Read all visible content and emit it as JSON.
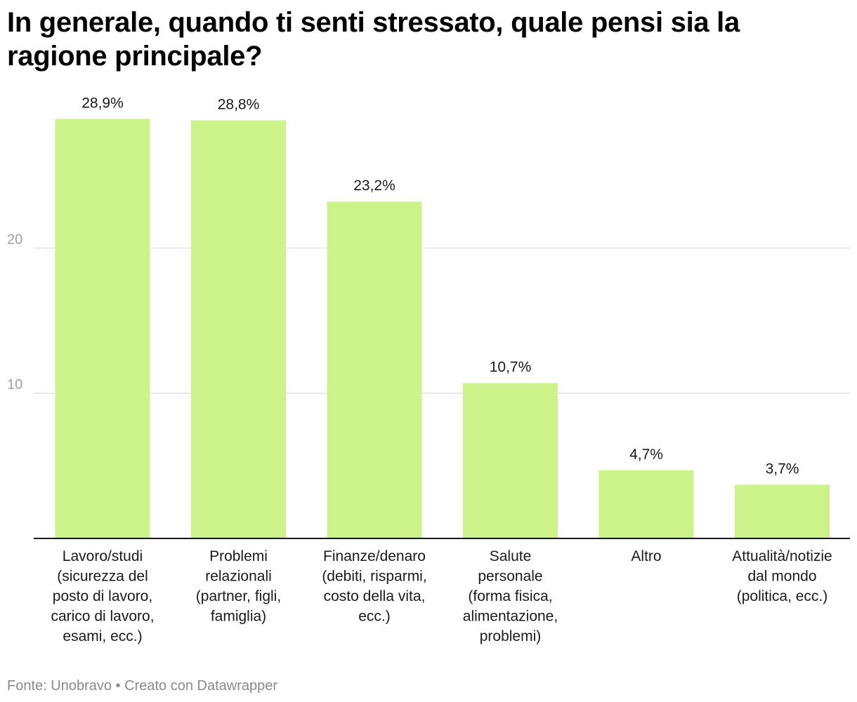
{
  "title": "In generale, quando ti senti stressato, quale pensi sia la ragione principale?",
  "source_text": "Fonte: Unobravo",
  "separator": "•",
  "credit_text": "Creato con Datawrapper",
  "colors": {
    "bar": "#ccf38a",
    "gridline": "#e2e2e2",
    "axis": "#1a1a1a",
    "tick_label": "#a0a0a0",
    "footer": "#8a8a8a"
  },
  "chart_data": {
    "type": "bar",
    "title": "In generale, quando ti senti stressato, quale pensi sia la ragione principale?",
    "xlabel": "",
    "ylabel": "",
    "ylim": [
      0,
      29
    ],
    "yticks": [
      10,
      20
    ],
    "grid": true,
    "categories": [
      "Lavoro/studi (sicurezza del posto di lavoro, carico di lavoro, esami, ecc.)",
      "Problemi relazionali (partner, figli, famiglia)",
      "Finanze/denaro (debiti, risparmi, costo della vita, ecc.)",
      "Salute personale (forma fisica, alimentazione, problemi)",
      "Altro",
      "Attualità/notizie dal mondo (politica, ecc.)"
    ],
    "category_lines": [
      [
        "Lavoro/studi",
        "(sicurezza del",
        "posto di lavoro,",
        "carico di lavoro,",
        "esami, ecc.)"
      ],
      [
        "Problemi",
        "relazionali",
        "(partner, figli,",
        "famiglia)"
      ],
      [
        "Finanze/denaro",
        "(debiti, risparmi,",
        "costo della vita,",
        "ecc.)"
      ],
      [
        "Salute",
        "personale",
        "(forma fisica,",
        "alimentazione,",
        "problemi)"
      ],
      [
        "Altro"
      ],
      [
        "Attualità/notizie",
        "dal mondo",
        "(politica, ecc.)"
      ]
    ],
    "values": [
      28.9,
      28.8,
      23.2,
      10.7,
      4.7,
      3.7
    ],
    "data_labels": [
      "28,9%",
      "28,8%",
      "23,2%",
      "10,7%",
      "4,7%",
      "3,7%"
    ]
  }
}
